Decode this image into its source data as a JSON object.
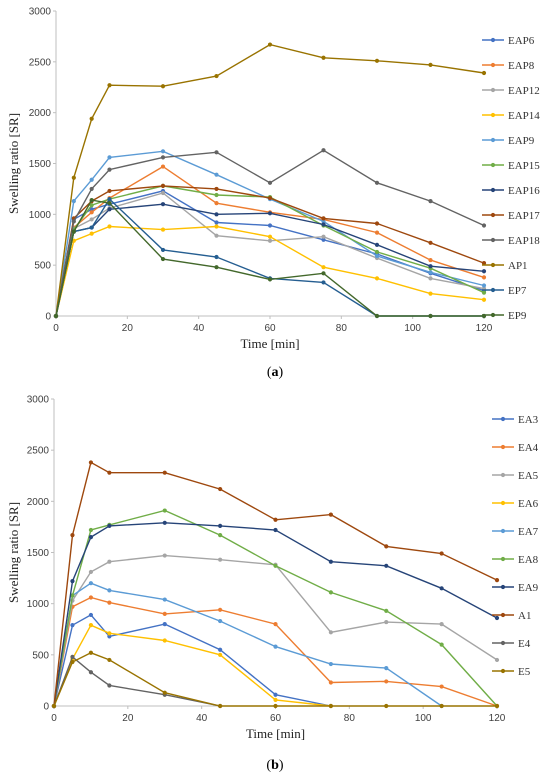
{
  "captions": {
    "a": "a",
    "b": "b"
  },
  "chart_data": [
    {
      "type": "line",
      "xlabel": "Time [min]",
      "ylabel": "Swelling ratio [SR]",
      "xlim": [
        0,
        120
      ],
      "ylim": [
        0,
        3000
      ],
      "xticks": [
        0,
        20,
        40,
        60,
        80,
        100,
        120
      ],
      "yticks": [
        0,
        500,
        1000,
        1500,
        2000,
        2500,
        3000
      ],
      "grid": false,
      "legend_position": "right",
      "series": [
        {
          "name": "EAP6",
          "color": "#4472c4",
          "x": [
            0,
            5,
            10,
            15,
            30,
            45,
            60,
            75,
            90,
            105,
            120
          ],
          "y": [
            0,
            950,
            1050,
            1100,
            1230,
            920,
            890,
            750,
            610,
            420,
            250
          ]
        },
        {
          "name": "EAP8",
          "color": "#ed7d31",
          "x": [
            0,
            5,
            10,
            15,
            30,
            45,
            60,
            75,
            90,
            105,
            120
          ],
          "y": [
            0,
            870,
            1020,
            1160,
            1470,
            1110,
            1020,
            950,
            820,
            550,
            380
          ]
        },
        {
          "name": "EAP12",
          "color": "#a5a5a5",
          "x": [
            0,
            5,
            10,
            15,
            30,
            45,
            60,
            75,
            90,
            105,
            120
          ],
          "y": [
            0,
            860,
            950,
            1060,
            1210,
            790,
            740,
            780,
            570,
            370,
            270
          ]
        },
        {
          "name": "EAP14",
          "color": "#ffc000",
          "x": [
            0,
            5,
            10,
            15,
            30,
            45,
            60,
            75,
            90,
            105,
            120
          ],
          "y": [
            0,
            740,
            810,
            880,
            850,
            880,
            780,
            480,
            370,
            220,
            160
          ]
        },
        {
          "name": "EAP9",
          "color": "#5b9bd5",
          "x": [
            0,
            5,
            10,
            15,
            30,
            45,
            60,
            75,
            90,
            105,
            120
          ],
          "y": [
            0,
            1130,
            1340,
            1560,
            1620,
            1390,
            1150,
            930,
            590,
            430,
            300
          ]
        },
        {
          "name": "EAP15",
          "color": "#70ad47",
          "x": [
            0,
            5,
            10,
            15,
            30,
            45,
            60,
            75,
            90,
            105,
            120
          ],
          "y": [
            0,
            850,
            1090,
            1150,
            1280,
            1190,
            1170,
            890,
            630,
            470,
            230
          ]
        },
        {
          "name": "EAP16",
          "color": "#264478",
          "x": [
            0,
            5,
            10,
            15,
            30,
            45,
            60,
            75,
            90,
            105,
            120
          ],
          "y": [
            0,
            830,
            870,
            1050,
            1100,
            1000,
            1010,
            900,
            700,
            490,
            440
          ]
        },
        {
          "name": "EAP17",
          "color": "#9e480e",
          "x": [
            0,
            5,
            10,
            15,
            30,
            45,
            60,
            75,
            90,
            105,
            120
          ],
          "y": [
            0,
            960,
            1130,
            1230,
            1280,
            1250,
            1160,
            960,
            910,
            720,
            520
          ]
        },
        {
          "name": "EAP18",
          "color": "#636363",
          "x": [
            0,
            5,
            10,
            15,
            30,
            45,
            60,
            75,
            90,
            105,
            120
          ],
          "y": [
            0,
            930,
            1250,
            1440,
            1560,
            1610,
            1310,
            1630,
            1310,
            1130,
            890
          ]
        },
        {
          "name": "AP1",
          "color": "#997300",
          "x": [
            0,
            5,
            10,
            15,
            30,
            45,
            60,
            75,
            90,
            105,
            120
          ],
          "y": [
            0,
            1360,
            1940,
            2270,
            2260,
            2360,
            2670,
            2540,
            2510,
            2470,
            2390
          ]
        },
        {
          "name": "EP7",
          "color": "#255e91",
          "x": [
            0,
            5,
            10,
            15,
            30,
            45,
            60,
            75,
            90,
            105,
            120
          ],
          "y": [
            0,
            830,
            870,
            1150,
            650,
            580,
            370,
            330,
            0,
            0,
            0
          ]
        },
        {
          "name": "EP9",
          "color": "#43682b",
          "x": [
            0,
            5,
            10,
            15,
            30,
            45,
            60,
            75,
            90,
            105,
            120
          ],
          "y": [
            0,
            830,
            1140,
            1110,
            560,
            480,
            360,
            420,
            0,
            0,
            0
          ]
        }
      ]
    },
    {
      "type": "line",
      "xlabel": "Time [min]",
      "ylabel": "Swelling ratio [SR]",
      "xlim": [
        0,
        120
      ],
      "ylim": [
        0,
        3000
      ],
      "xticks": [
        0,
        20,
        40,
        60,
        80,
        100,
        120
      ],
      "yticks": [
        0,
        500,
        1000,
        1500,
        2000,
        2500,
        3000
      ],
      "grid": false,
      "legend_position": "right",
      "series": [
        {
          "name": "EA3",
          "color": "#4472c4",
          "x": [
            0,
            5,
            10,
            15,
            30,
            45,
            60,
            75
          ],
          "y": [
            0,
            790,
            890,
            680,
            800,
            550,
            110,
            0
          ]
        },
        {
          "name": "EA4",
          "color": "#ed7d31",
          "x": [
            0,
            5,
            10,
            15,
            30,
            45,
            60,
            75,
            90,
            105,
            120
          ],
          "y": [
            0,
            970,
            1060,
            1010,
            900,
            940,
            800,
            230,
            240,
            190,
            0
          ]
        },
        {
          "name": "EA5",
          "color": "#a5a5a5",
          "x": [
            0,
            5,
            10,
            15,
            30,
            45,
            60,
            75,
            90,
            105,
            120
          ],
          "y": [
            0,
            1030,
            1310,
            1410,
            1470,
            1430,
            1380,
            720,
            820,
            800,
            450
          ]
        },
        {
          "name": "EA6",
          "color": "#ffc000",
          "x": [
            0,
            5,
            10,
            15,
            30,
            45,
            60,
            75
          ],
          "y": [
            0,
            460,
            790,
            710,
            640,
            500,
            60,
            0
          ]
        },
        {
          "name": "EA7",
          "color": "#5b9bd5",
          "x": [
            0,
            5,
            10,
            15,
            30,
            45,
            60,
            75,
            90,
            105
          ],
          "y": [
            0,
            1080,
            1200,
            1130,
            1040,
            830,
            580,
            410,
            370,
            0
          ]
        },
        {
          "name": "EA8",
          "color": "#70ad47",
          "x": [
            0,
            5,
            10,
            15,
            30,
            45,
            60,
            75,
            90,
            105,
            120
          ],
          "y": [
            0,
            1080,
            1720,
            1770,
            1910,
            1670,
            1370,
            1110,
            930,
            600,
            0
          ]
        },
        {
          "name": "EA9",
          "color": "#264478",
          "x": [
            0,
            5,
            10,
            15,
            30,
            45,
            60,
            75,
            90,
            105,
            120
          ],
          "y": [
            0,
            1220,
            1650,
            1760,
            1790,
            1760,
            1720,
            1410,
            1370,
            1150,
            860
          ]
        },
        {
          "name": "A1",
          "color": "#9e480e",
          "x": [
            0,
            5,
            10,
            15,
            30,
            45,
            60,
            75,
            90,
            105,
            120
          ],
          "y": [
            0,
            1670,
            2380,
            2280,
            2280,
            2120,
            1820,
            1870,
            1560,
            1490,
            1230
          ]
        },
        {
          "name": "E4",
          "color": "#636363",
          "x": [
            0,
            5,
            10,
            15,
            30,
            45
          ],
          "y": [
            0,
            480,
            330,
            200,
            110,
            0
          ]
        },
        {
          "name": "E5",
          "color": "#997300",
          "x": [
            0,
            5,
            10,
            15,
            30,
            45,
            60,
            75,
            90,
            105,
            120
          ],
          "y": [
            0,
            430,
            520,
            450,
            130,
            0,
            0,
            0,
            0,
            0,
            0
          ]
        }
      ]
    }
  ]
}
